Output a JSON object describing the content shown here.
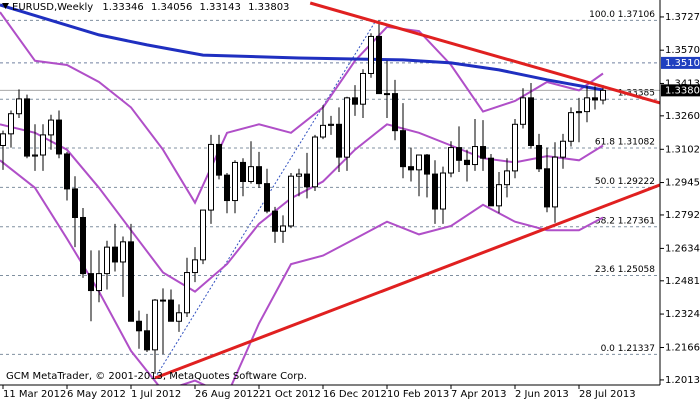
{
  "chart_data": {
    "type": "candlestick",
    "title": "EURUSD,Weekly",
    "watermark": "GCM MetaTrader, © 2001-2013, MetaQuotes Software Corp.",
    "categories": [
      "11 Mar 2012",
      null,
      null,
      null,
      null,
      null,
      null,
      null,
      "6 May 2012",
      null,
      null,
      null,
      null,
      null,
      null,
      null,
      "1 Jul 2012",
      null,
      null,
      null,
      null,
      null,
      null,
      null,
      "26 Aug 2012",
      null,
      null,
      null,
      null,
      null,
      null,
      null,
      "21 Oct 2012",
      null,
      null,
      null,
      null,
      null,
      null,
      null,
      "16 Dec 2012",
      null,
      null,
      null,
      null,
      null,
      null,
      null,
      "10 Feb 2013",
      null,
      null,
      null,
      null,
      null,
      null,
      null,
      "7 Apr 2013",
      null,
      null,
      null,
      null,
      null,
      null,
      null,
      "2 Jun 2013",
      null,
      null,
      null,
      null,
      null,
      null,
      null,
      "28 Jul 2013",
      null,
      null,
      null
    ],
    "open": [
      1.312,
      1.3175,
      1.327,
      1.334,
      1.307,
      1.3075,
      1.317,
      1.324,
      1.308,
      1.2915,
      1.278,
      1.2515,
      1.2435,
      1.2515,
      1.264,
      1.257,
      1.2665,
      1.229,
      1.2245,
      1.2155,
      1.239,
      1.239,
      1.229,
      1.233,
      1.252,
      1.258,
      1.2815,
      1.3125,
      1.298,
      1.286,
      1.304,
      1.295,
      1.302,
      1.294,
      1.281,
      1.2715,
      1.274,
      1.2975,
      1.2985,
      1.2925,
      1.316,
      1.3215,
      1.322,
      1.3065,
      1.3345,
      1.3315,
      1.346,
      1.3635,
      1.3365,
      1.3365,
      1.319,
      1.302,
      1.3005,
      1.3075,
      1.2985,
      1.282,
      1.299,
      1.311,
      1.305,
      1.303,
      1.3115,
      1.306,
      1.2835,
      1.2935,
      1.3,
      1.322,
      1.3345,
      1.312,
      1.301,
      1.283,
      1.3065,
      1.314,
      1.3275,
      1.328,
      1.3345,
      1.33346
    ],
    "high": [
      1.319,
      1.3285,
      1.3385,
      1.336,
      1.322,
      1.322,
      1.3265,
      1.3285,
      1.309,
      1.2975,
      1.2825,
      1.2625,
      1.2625,
      1.267,
      1.275,
      1.269,
      1.275,
      1.234,
      1.2325,
      1.2395,
      1.2445,
      1.244,
      1.237,
      1.259,
      1.264,
      1.2815,
      1.317,
      1.317,
      1.299,
      1.305,
      1.306,
      1.314,
      1.309,
      1.301,
      1.283,
      1.279,
      1.299,
      1.301,
      1.3085,
      1.317,
      1.331,
      1.326,
      1.33,
      1.335,
      1.3405,
      1.348,
      1.365,
      1.371,
      1.352,
      1.343,
      1.332,
      1.311,
      1.3075,
      1.308,
      1.305,
      1.302,
      1.314,
      1.321,
      1.31,
      1.3245,
      1.324,
      1.308,
      1.2995,
      1.306,
      1.3245,
      1.339,
      1.3415,
      1.3175,
      1.311,
      1.3135,
      1.3175,
      1.33,
      1.3345,
      1.34,
      1.34,
      1.34056
    ],
    "low": [
      1.3005,
      1.311,
      1.325,
      1.306,
      1.3,
      1.3,
      1.31,
      1.306,
      1.286,
      1.264,
      1.2495,
      1.229,
      1.238,
      1.244,
      1.2525,
      1.2405,
      1.229,
      1.216,
      1.2145,
      1.2042,
      1.2135,
      1.229,
      1.224,
      1.231,
      1.2475,
      1.256,
      1.275,
      1.296,
      1.28,
      1.28,
      1.288,
      1.294,
      1.292,
      1.28,
      1.266,
      1.266,
      1.273,
      1.288,
      1.287,
      1.2905,
      1.315,
      1.317,
      1.2995,
      1.3,
      1.326,
      1.325,
      1.344,
      1.338,
      1.325,
      1.3145,
      1.2965,
      1.295,
      1.288,
      1.2875,
      1.275,
      1.275,
      1.297,
      1.2995,
      1.295,
      1.3,
      1.3,
      1.284,
      1.28,
      1.2875,
      1.2965,
      1.32,
      1.3105,
      1.2995,
      1.2805,
      1.2755,
      1.301,
      1.3115,
      1.3135,
      1.323,
      1.329,
      1.33143
    ],
    "close": [
      1.3175,
      1.327,
      1.334,
      1.307,
      1.3075,
      1.317,
      1.324,
      1.308,
      1.2915,
      1.278,
      1.2515,
      1.2435,
      1.2515,
      1.264,
      1.257,
      1.2665,
      1.229,
      1.2245,
      1.2155,
      1.239,
      1.239,
      1.229,
      1.233,
      1.252,
      1.258,
      1.2815,
      1.3125,
      1.298,
      1.286,
      1.304,
      1.295,
      1.302,
      1.294,
      1.281,
      1.2715,
      1.274,
      1.2975,
      1.2985,
      1.2925,
      1.316,
      1.3215,
      1.322,
      1.3065,
      1.3345,
      1.3315,
      1.346,
      1.3635,
      1.3365,
      1.3365,
      1.319,
      1.302,
      1.3005,
      1.3075,
      1.2985,
      1.282,
      1.299,
      1.311,
      1.305,
      1.303,
      1.3115,
      1.306,
      1.2835,
      1.2935,
      1.3,
      1.322,
      1.3345,
      1.312,
      1.301,
      1.283,
      1.3065,
      1.314,
      1.3275,
      1.328,
      1.3345,
      1.3335,
      1.33803
    ],
    "up_color": "#ffffff",
    "down_color": "#000000",
    "last_price_color": "#000000",
    "xlim": [
      -0.375,
      82.125
    ],
    "ylim": [
      1.1989,
      1.3807
    ],
    "yticks": [
      {
        "value": 1.3727,
        "label": "1.37270"
      },
      {
        "value": 1.357,
        "label": "1.35700"
      },
      {
        "value": 1.3413,
        "label": "1.34130"
      },
      {
        "value": 1.326,
        "label": "1.32600"
      },
      {
        "value": 1.3102,
        "label": "1.31020"
      },
      {
        "value": 1.2945,
        "label": "1.29450"
      },
      {
        "value": 1.2792,
        "label": "1.27920"
      },
      {
        "value": 1.2634,
        "label": "1.26340"
      },
      {
        "value": 1.2481,
        "label": "1.24810"
      },
      {
        "value": 1.2324,
        "label": "1.23240"
      },
      {
        "value": 1.2166,
        "label": "1.21660"
      },
      {
        "value": 1.2013,
        "label": "1.20130"
      }
    ],
    "indicators": [
      {
        "color": "#b04fc8",
        "width": 2,
        "x": [
          -0.375,
          4,
          8,
          12,
          16,
          20,
          24,
          28,
          32,
          36,
          40,
          44,
          48,
          52,
          56,
          60,
          64,
          68,
          72,
          75
        ],
        "values": [
          1.375,
          1.352,
          1.35,
          1.342,
          1.33,
          1.31,
          1.285,
          1.318,
          1.322,
          1.318,
          1.33,
          1.352,
          1.368,
          1.366,
          1.35,
          1.328,
          1.333,
          1.342,
          1.338,
          1.346
        ]
      },
      {
        "color": "#b04fc8",
        "width": 2,
        "x": [
          -0.375,
          4,
          8,
          12,
          16,
          20,
          24,
          28,
          32,
          36,
          40,
          44,
          48,
          52,
          56,
          60,
          64,
          68,
          72,
          75
        ],
        "values": [
          1.322,
          1.318,
          1.31,
          1.292,
          1.272,
          1.252,
          1.243,
          1.256,
          1.275,
          1.287,
          1.295,
          1.31,
          1.322,
          1.318,
          1.312,
          1.306,
          1.304,
          1.307,
          1.305,
          1.312
        ]
      },
      {
        "color": "#b04fc8",
        "width": 2,
        "x": [
          -0.375,
          4,
          8,
          12,
          16,
          20,
          24,
          28,
          32,
          36,
          40,
          44,
          48,
          52,
          56,
          60,
          64,
          68,
          72,
          75
        ],
        "values": [
          1.305,
          1.292,
          1.268,
          1.243,
          1.215,
          1.196,
          1.201,
          1.194,
          1.228,
          1.256,
          1.26,
          1.268,
          1.276,
          1.27,
          1.274,
          1.284,
          1.276,
          1.272,
          1.272,
          1.278
        ]
      },
      {
        "color": "#1f2fc0",
        "width": 3,
        "x": [
          -0.375,
          12,
          18,
          25,
          37,
          50,
          56,
          62,
          68,
          75
        ],
        "values": [
          1.3784,
          1.3642,
          1.3595,
          1.3547,
          1.3533,
          1.3524,
          1.351,
          1.3477,
          1.343,
          1.3382
        ]
      }
    ],
    "trendlines": [
      {
        "color": "#e02020",
        "x": [
          38.4,
          82.125
        ],
        "values": [
          1.3793,
          1.3321
        ]
      },
      {
        "color": "#e02020",
        "x": [
          19,
          82.125
        ],
        "values": [
          1.2022,
          1.2934
        ]
      }
    ],
    "fib_levels": [
      {
        "value": 1.37106,
        "label": "100.0 1.37106"
      },
      {
        "value": 1.33385,
        "label": "1.33385"
      },
      {
        "value": 1.31082,
        "label": "61.8 1.31082"
      },
      {
        "value": 1.29222,
        "label": "50.0 1.29222"
      },
      {
        "value": 1.27361,
        "label": "38.2 1.27361"
      },
      {
        "value": 1.25058,
        "label": "23.6 1.25058"
      },
      {
        "value": 1.21337,
        "label": "0.0 1.21337"
      }
    ],
    "levels": [
      {
        "value": 1.351,
        "label": "1.35100",
        "color": "#1f3fbf"
      }
    ]
  }
}
